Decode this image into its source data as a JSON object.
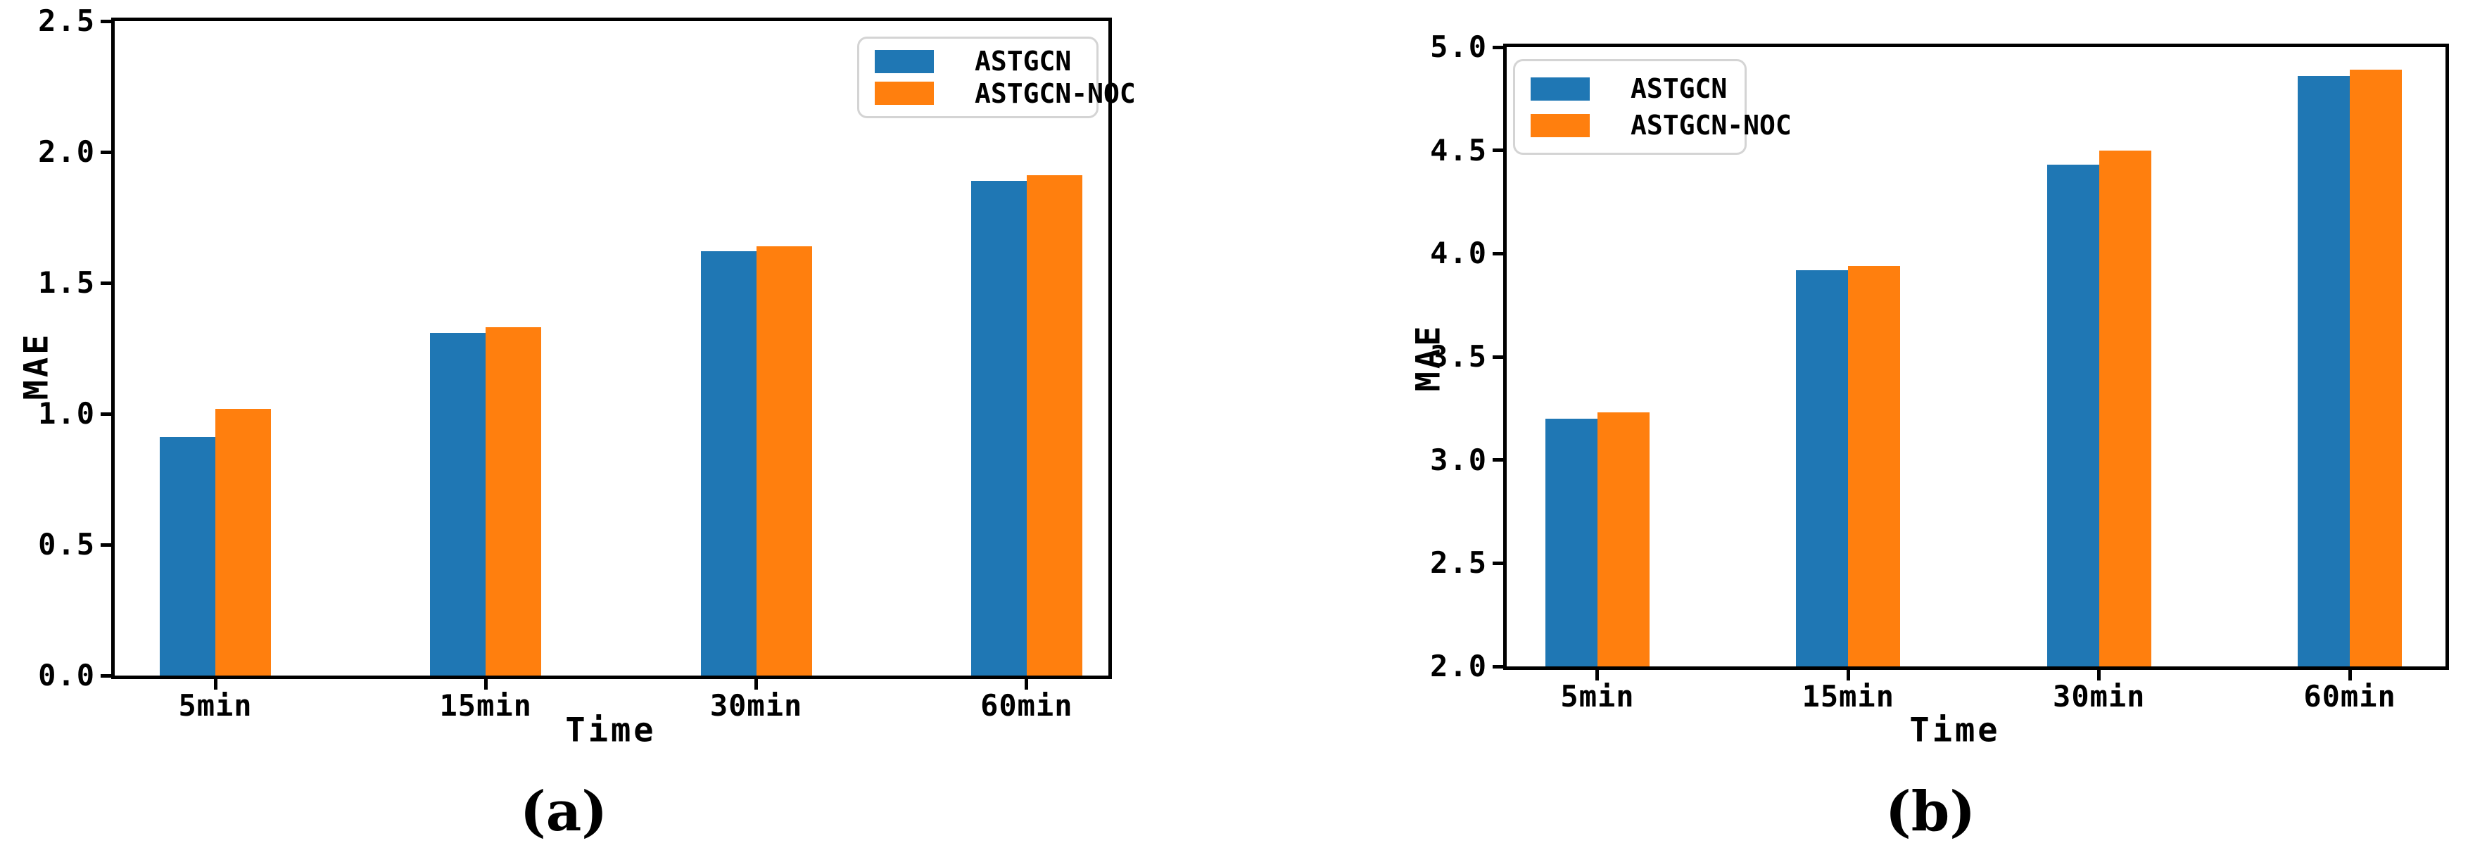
{
  "figure": {
    "background": "#ffffff",
    "axis_color": "#000000",
    "legend_border_color": "#d4d4d4"
  },
  "chart_data": [
    {
      "id": "a",
      "type": "bar",
      "caption": "(a)",
      "xlabel": "Time",
      "ylabel": "MAE",
      "categories": [
        "5min",
        "15min",
        "30min",
        "60min"
      ],
      "series": [
        {
          "name": "ASTGCN",
          "color": "#1f77b4",
          "values": [
            0.91,
            1.31,
            1.62,
            1.89
          ]
        },
        {
          "name": "ASTGCN-NOC",
          "color": "#ff7f0e",
          "values": [
            1.02,
            1.33,
            1.64,
            1.91
          ]
        }
      ],
      "ylim": [
        0.0,
        2.5
      ],
      "ytick_labels": [
        "0.0",
        "0.5",
        "1.0",
        "1.5",
        "2.0",
        "2.5"
      ],
      "legend_position": "top-right",
      "grid": false
    },
    {
      "id": "b",
      "type": "bar",
      "caption": "(b)",
      "xlabel": "Time",
      "ylabel": "MAE",
      "categories": [
        "5min",
        "15min",
        "30min",
        "60min"
      ],
      "series": [
        {
          "name": "ASTGCN",
          "color": "#1f77b4",
          "values": [
            3.2,
            3.92,
            4.43,
            4.86
          ]
        },
        {
          "name": "ASTGCN-NOC",
          "color": "#ff7f0e",
          "values": [
            3.23,
            3.94,
            4.5,
            4.89
          ]
        }
      ],
      "ylim": [
        2.0,
        5.0
      ],
      "ytick_labels": [
        "2.0",
        "2.5",
        "3.0",
        "3.5",
        "4.0",
        "4.5",
        "5.0"
      ],
      "legend_position": "top-left",
      "grid": false
    }
  ]
}
